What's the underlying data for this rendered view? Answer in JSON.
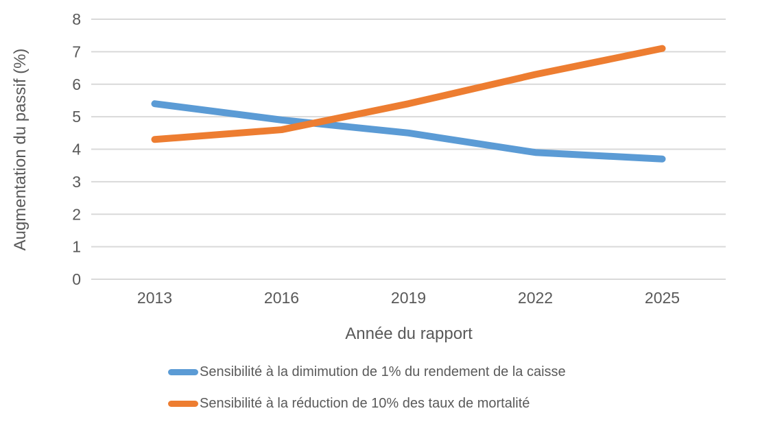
{
  "colors": {
    "gridline": "#D9D9D9",
    "axis_text": "#595959",
    "background": "#FFFFFF",
    "series_blue": "#5B9BD5",
    "series_orange": "#ED7D31"
  },
  "chart_data": {
    "type": "line",
    "title": "",
    "xlabel": "Année du rapport",
    "ylabel": "Augmentation du passif (%)",
    "categories": [
      "2013",
      "2016",
      "2019",
      "2022",
      "2025"
    ],
    "series": [
      {
        "name": "Sensibilité à la dimimution de 1% du rendement de la caisse",
        "color": "#5B9BD5",
        "values": [
          5.4,
          4.9,
          4.5,
          3.9,
          3.7
        ]
      },
      {
        "name": "Sensibilité à la réduction de 10% des taux de mortalité",
        "color": "#ED7D31",
        "values": [
          4.3,
          4.6,
          5.4,
          6.3,
          7.1
        ]
      }
    ],
    "ylim": [
      0,
      8
    ],
    "yticks": [
      "0",
      "1",
      "2",
      "3",
      "4",
      "5",
      "6",
      "7",
      "8"
    ],
    "ytick_step": 1,
    "grid": "horizontal",
    "legend_position": "bottom-left"
  }
}
